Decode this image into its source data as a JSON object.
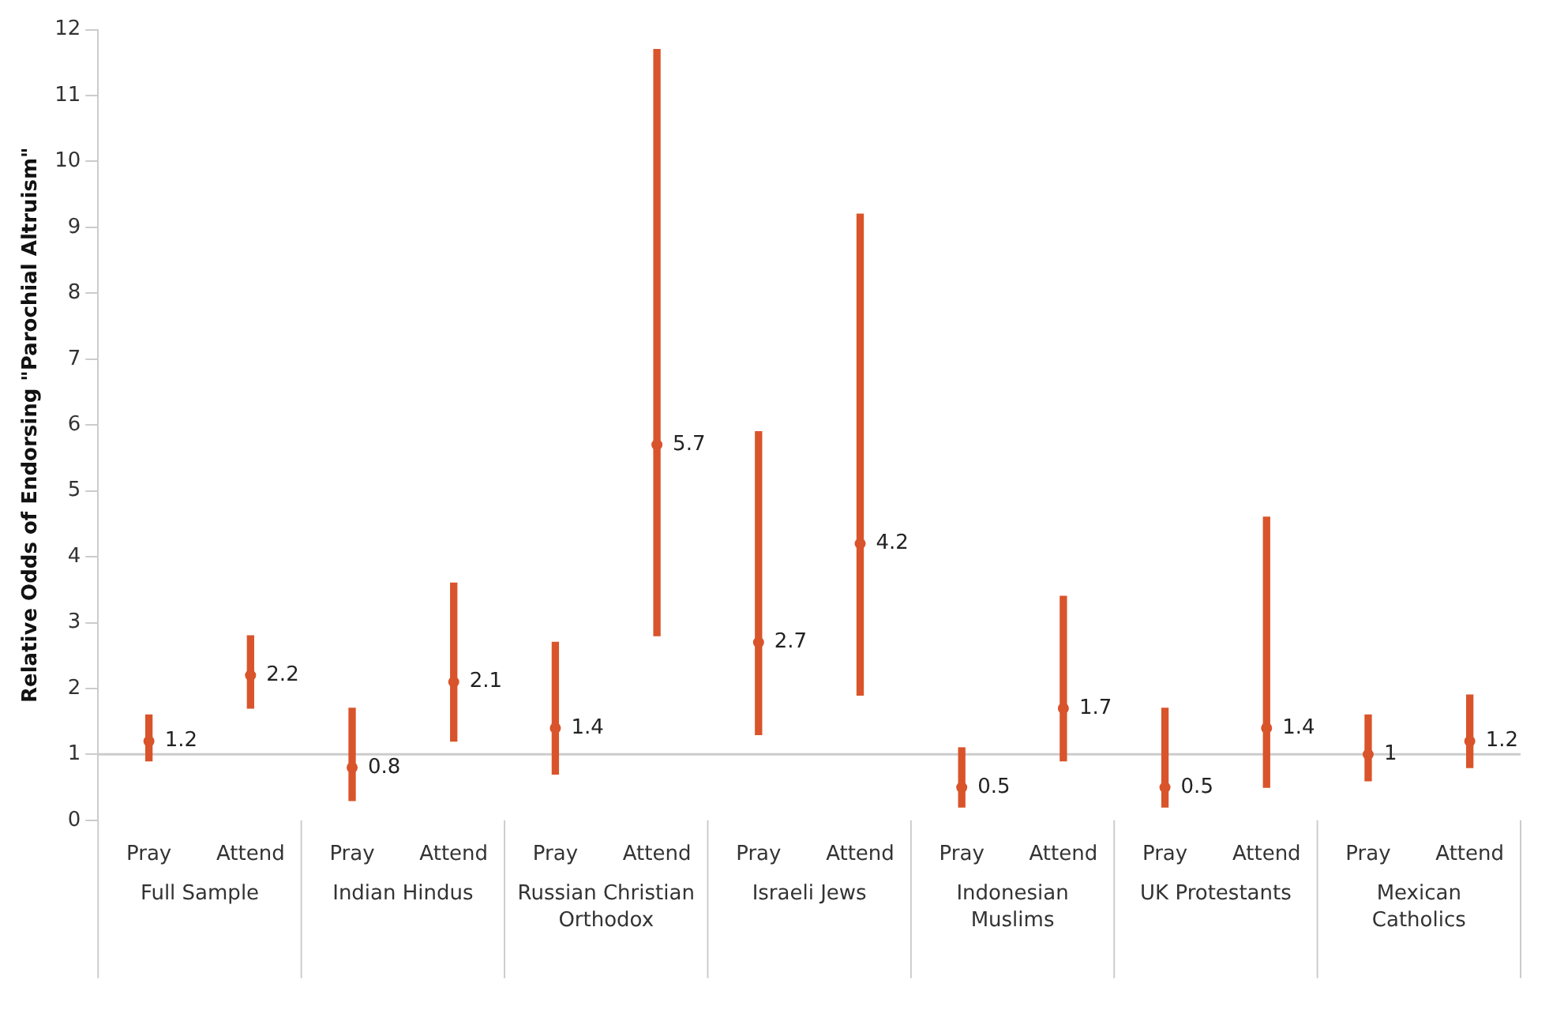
{
  "chart_data": {
    "type": "bar",
    "ylabel": "Relative Odds of Endorsing \"Parochial Altruism\"",
    "categories": [
      "Pray",
      "Attend",
      "Pray",
      "Attend",
      "Pray",
      "Attend",
      "Pray",
      "Attend",
      "Pray",
      "Attend",
      "Pray",
      "Attend",
      "Pray",
      "Attend"
    ],
    "series": [
      {
        "color": "#d9542b",
        "base": [
          0.9,
          1.7,
          0.3,
          1.2,
          0.7,
          2.8,
          1.3,
          1.9,
          0.2,
          0.9,
          0.2,
          0.5,
          0.6,
          0.8
        ],
        "values": [
          0.7,
          1.1,
          1.4,
          2.4,
          2.0,
          8.9,
          4.6,
          7.3,
          0.9,
          2.5,
          1.5,
          4.1,
          1.0,
          1.1
        ]
      },
      {
        "type": "scatter",
        "marker": "circle",
        "color": "#d9542b",
        "values": [
          1.2,
          2.2,
          0.8,
          2.1,
          1.4,
          5.7,
          2.7,
          4.2,
          0.5,
          1.7,
          0.5,
          1.4,
          1,
          1.2
        ],
        "value_labels": [
          "1.2",
          "2.2",
          "0.8",
          "2.1",
          "1.4",
          "5.7",
          "2.7",
          "4.2",
          "0.5",
          "1.7",
          "0.5",
          "1.4",
          "1",
          "1.2"
        ]
      }
    ],
    "annotations": [
      "Full Sample",
      "Indian Hindus",
      "Russian Christian Orthodox",
      "Israeli Jews",
      "Indonesian Muslims",
      "UK Protestants",
      "Mexican Catholics"
    ],
    "ref_lines": [
      {
        "axis": "y",
        "value": 1,
        "color": "#cccccc"
      }
    ],
    "ylim": [
      0,
      12
    ],
    "yticks": [
      0,
      1,
      2,
      3,
      4,
      5,
      6,
      7,
      8,
      9,
      10,
      11,
      12
    ],
    "grid": false,
    "legend": false
  }
}
